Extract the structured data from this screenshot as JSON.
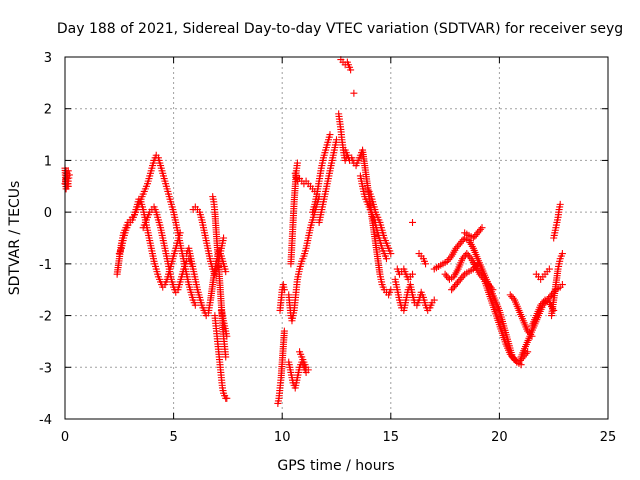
{
  "chart_data": {
    "type": "scatter",
    "title": "Day 188 of 2021, Sidereal Day-to-day VTEC variation (SDTVAR) for receiver seyg",
    "xlabel": "GPS time / hours",
    "ylabel": "SDTVAR / TECUs",
    "xlim": [
      0,
      25
    ],
    "ylim": [
      -4,
      3
    ],
    "xticks": [
      0,
      5,
      10,
      15,
      20,
      25
    ],
    "yticks": [
      -4,
      -3,
      -2,
      -1,
      0,
      1,
      2,
      3
    ],
    "xtick_labels": [
      "0",
      "5",
      "10",
      "15",
      "20",
      "25"
    ],
    "ytick_labels": [
      "-4",
      "-3",
      "-2",
      "-1",
      "0",
      "1",
      "2",
      "3"
    ],
    "grid": true,
    "legend": "none",
    "marker": "plus",
    "color": "#ff0000",
    "segments": [
      {
        "x": [
          0.0,
          0.05,
          0.1,
          0.15,
          0.2,
          0.15,
          0.1,
          0.05,
          0.0,
          0.05,
          0.1,
          0.15
        ],
        "y": [
          0.55,
          0.65,
          0.75,
          0.8,
          0.72,
          0.6,
          0.5,
          0.45,
          0.85,
          0.8,
          0.7,
          0.5
        ]
      },
      {
        "x": [
          2.4,
          2.5,
          2.6,
          2.7,
          2.8,
          2.9,
          3.0,
          3.1,
          3.2,
          3.3,
          3.4,
          3.5,
          3.6,
          3.7,
          3.8,
          3.9,
          4.0,
          4.1,
          4.2,
          4.3,
          4.4,
          4.5,
          4.6,
          4.7,
          4.8,
          4.9,
          5.0,
          5.1,
          5.2,
          5.3,
          5.4,
          5.5,
          5.6,
          5.7,
          5.8,
          5.9,
          6.0
        ],
        "y": [
          -1.2,
          -0.9,
          -0.6,
          -0.4,
          -0.3,
          -0.2,
          -0.15,
          -0.1,
          -0.05,
          0.05,
          0.15,
          0.25,
          0.35,
          0.45,
          0.55,
          0.7,
          0.85,
          1.0,
          1.1,
          1.05,
          0.9,
          0.75,
          0.6,
          0.45,
          0.3,
          0.15,
          0.0,
          -0.2,
          -0.4,
          -0.6,
          -0.8,
          -1.0,
          -1.2,
          -1.4,
          -1.55,
          -1.7,
          -1.8
        ]
      },
      {
        "x": [
          2.5,
          2.6,
          2.7,
          2.8,
          2.9,
          3.0,
          3.1,
          3.2,
          3.3,
          3.4,
          3.5,
          3.6,
          3.7,
          3.8,
          3.9,
          4.0,
          4.1,
          4.2,
          4.3,
          4.4,
          4.5,
          4.6,
          4.7,
          4.8,
          4.9,
          5.0,
          5.1,
          5.2,
          5.3
        ],
        "y": [
          -0.8,
          -0.7,
          -0.5,
          -0.35,
          -0.25,
          -0.2,
          -0.15,
          -0.05,
          0.1,
          0.25,
          0.2,
          0.05,
          -0.15,
          -0.35,
          -0.55,
          -0.75,
          -0.95,
          -1.1,
          -1.25,
          -1.35,
          -1.45,
          -1.4,
          -1.3,
          -1.15,
          -1.0,
          -0.85,
          -0.7,
          -0.55,
          -0.4
        ]
      },
      {
        "x": [
          3.6,
          3.7,
          3.8,
          3.9,
          4.0,
          4.1,
          4.2,
          4.3,
          4.4,
          4.5,
          4.6,
          4.7,
          4.8,
          4.9,
          5.0,
          5.1,
          5.2,
          5.3,
          5.4,
          5.5,
          5.6,
          5.7,
          5.8
        ],
        "y": [
          -0.3,
          -0.2,
          -0.1,
          0.0,
          0.05,
          0.1,
          0.0,
          -0.15,
          -0.3,
          -0.5,
          -0.7,
          -0.9,
          -1.1,
          -1.3,
          -1.45,
          -1.55,
          -1.5,
          -1.35,
          -1.2,
          -1.05,
          -0.95,
          -0.9,
          -1.0
        ]
      },
      {
        "x": [
          5.6,
          5.7,
          5.8,
          5.9,
          6.0,
          6.1,
          6.2,
          6.3,
          6.4,
          6.5,
          6.6,
          6.7,
          6.8,
          6.9,
          7.0,
          7.1,
          7.2,
          7.3,
          7.4
        ],
        "y": [
          -0.8,
          -0.7,
          -0.9,
          -1.1,
          -1.3,
          -1.5,
          -1.65,
          -1.8,
          -1.9,
          -2.0,
          -1.95,
          -1.7,
          -1.4,
          -1.1,
          -0.9,
          -0.75,
          -0.85,
          -1.0,
          -1.15
        ]
      },
      {
        "x": [
          5.9,
          6.0,
          6.1,
          6.2,
          6.3,
          6.4,
          6.5,
          6.6,
          6.7,
          6.8,
          6.9,
          7.0,
          7.1,
          7.2,
          7.3
        ],
        "y": [
          0.05,
          0.1,
          0.05,
          0.0,
          -0.15,
          -0.35,
          -0.55,
          -0.75,
          -0.95,
          -1.1,
          -1.2,
          -1.1,
          -0.9,
          -0.7,
          -0.5
        ]
      },
      {
        "x": [
          6.8,
          6.85,
          6.9,
          6.95,
          7.0,
          7.05,
          7.1,
          7.15,
          7.2,
          7.25,
          7.3,
          7.35,
          7.4
        ],
        "y": [
          0.3,
          0.2,
          0.0,
          -0.3,
          -0.6,
          -0.9,
          -1.2,
          -1.5,
          -1.8,
          -2.1,
          -2.4,
          -2.6,
          -2.8
        ]
      },
      {
        "x": [
          6.9,
          6.95,
          7.0,
          7.05,
          7.1,
          7.15,
          7.2,
          7.25,
          7.3,
          7.35,
          7.4,
          7.45
        ],
        "y": [
          -2.0,
          -2.2,
          -2.4,
          -2.6,
          -2.8,
          -3.0,
          -3.2,
          -3.4,
          -3.5,
          -3.55,
          -3.6,
          -3.6
        ]
      },
      {
        "x": [
          7.2,
          7.25,
          7.3,
          7.35,
          7.4,
          7.45
        ],
        "y": [
          -1.9,
          -2.0,
          -2.1,
          -2.2,
          -2.3,
          -2.4
        ]
      },
      {
        "x": [
          9.8,
          9.85,
          9.9,
          9.95,
          10.0,
          10.05,
          10.1
        ],
        "y": [
          -3.7,
          -3.6,
          -3.4,
          -3.2,
          -2.9,
          -2.6,
          -2.3
        ]
      },
      {
        "x": [
          9.9,
          9.95,
          10.0,
          10.05,
          10.1
        ],
        "y": [
          -1.9,
          -1.7,
          -1.5,
          -1.4,
          -1.5
        ]
      },
      {
        "x": [
          10.3,
          10.35,
          10.4,
          10.45,
          10.5,
          10.55,
          10.6,
          10.65,
          10.7,
          10.8,
          10.9,
          11.0,
          11.1,
          11.2,
          11.3,
          11.4,
          11.5,
          11.6,
          11.7
        ],
        "y": [
          -1.6,
          -1.8,
          -2.0,
          -2.1,
          -2.0,
          -1.9,
          -1.7,
          -1.5,
          -1.3,
          -1.1,
          -0.95,
          -0.85,
          -0.7,
          -0.5,
          -0.3,
          -0.15,
          0.0,
          0.15,
          0.3
        ]
      },
      {
        "x": [
          10.4,
          10.45,
          10.5,
          10.55,
          10.6,
          10.65,
          10.7
        ],
        "y": [
          -1.0,
          -0.6,
          -0.2,
          0.2,
          0.5,
          0.8,
          0.95
        ]
      },
      {
        "x": [
          10.6,
          10.7,
          10.8,
          10.9,
          11.0,
          11.1,
          11.2,
          11.3,
          11.4,
          11.5,
          11.6
        ],
        "y": [
          0.75,
          0.6,
          0.65,
          0.6,
          0.55,
          0.6,
          0.55,
          0.5,
          0.45,
          0.4,
          0.35
        ]
      },
      {
        "x": [
          10.3,
          10.4,
          10.5,
          10.6,
          10.7,
          10.8,
          10.9,
          11.0,
          11.1
        ],
        "y": [
          -2.9,
          -3.1,
          -3.3,
          -3.4,
          -3.2,
          -3.0,
          -2.9,
          -3.0,
          -3.1
        ]
      },
      {
        "x": [
          10.8,
          10.9,
          11.0,
          11.1,
          11.2
        ],
        "y": [
          -2.7,
          -2.8,
          -2.9,
          -3.0,
          -3.05
        ]
      },
      {
        "x": [
          11.4,
          11.5,
          11.6,
          11.7,
          11.8,
          11.9,
          12.0,
          12.1,
          12.2
        ],
        "y": [
          0.0,
          0.15,
          0.35,
          0.6,
          0.85,
          1.05,
          1.2,
          1.35,
          1.5
        ]
      },
      {
        "x": [
          11.7,
          11.8,
          11.9,
          12.0,
          12.1,
          12.2,
          12.3,
          12.4,
          12.5
        ],
        "y": [
          -0.2,
          0.0,
          0.2,
          0.4,
          0.6,
          0.8,
          1.0,
          1.2,
          1.4
        ]
      },
      {
        "x": [
          12.6,
          12.65,
          12.7,
          12.75,
          12.8,
          12.85,
          12.9,
          12.95,
          13.0
        ],
        "y": [
          1.9,
          1.75,
          1.6,
          1.4,
          1.25,
          1.1,
          1.0,
          1.05,
          1.1
        ]
      },
      {
        "x": [
          12.7,
          12.8,
          12.9,
          13.0,
          13.05,
          13.1,
          13.15
        ],
        "y": [
          2.95,
          2.9,
          2.85,
          2.9,
          2.85,
          2.8,
          2.75
        ]
      },
      {
        "x": [
          13.3
        ],
        "y": [
          2.3
        ]
      },
      {
        "x": [
          12.9,
          13.0,
          13.1,
          13.2,
          13.3,
          13.4,
          13.5,
          13.6,
          13.7,
          13.8,
          13.9,
          14.0,
          14.1,
          14.2,
          14.3,
          14.4,
          14.5,
          14.6,
          14.7,
          14.8,
          14.9,
          15.0
        ],
        "y": [
          1.2,
          1.1,
          1.0,
          1.05,
          0.95,
          0.9,
          1.0,
          1.1,
          1.2,
          0.9,
          0.6,
          0.3,
          0.0,
          -0.3,
          -0.6,
          -0.9,
          -1.2,
          -1.4,
          -1.5,
          -1.55,
          -1.6,
          -1.5
        ]
      },
      {
        "x": [
          13.6,
          13.7,
          13.8,
          13.9,
          14.0,
          14.1,
          14.2,
          14.3,
          14.4,
          14.5,
          14.6,
          14.7,
          14.8
        ],
        "y": [
          0.7,
          0.5,
          0.3,
          0.2,
          0.1,
          0.0,
          -0.1,
          -0.25,
          -0.4,
          -0.55,
          -0.7,
          -0.8,
          -0.9
        ]
      },
      {
        "x": [
          14.0,
          14.1,
          14.2,
          14.3,
          14.4,
          14.5,
          14.6,
          14.7,
          14.8,
          14.9,
          15.0
        ],
        "y": [
          0.4,
          0.3,
          0.15,
          0.0,
          -0.1,
          -0.2,
          -0.35,
          -0.5,
          -0.6,
          -0.7,
          -0.8
        ]
      },
      {
        "x": [
          15.2,
          15.3,
          15.4,
          15.5,
          15.6,
          15.7,
          15.8,
          15.9,
          16.0,
          16.1,
          16.2,
          16.3,
          16.4,
          16.5,
          16.6,
          16.7,
          16.8,
          16.9,
          17.0
        ],
        "y": [
          -1.3,
          -1.5,
          -1.7,
          -1.85,
          -1.9,
          -1.7,
          -1.5,
          -1.4,
          -1.6,
          -1.75,
          -1.8,
          -1.7,
          -1.55,
          -1.65,
          -1.8,
          -1.9,
          -1.85,
          -1.75,
          -1.7
        ]
      },
      {
        "x": [
          15.3,
          15.4,
          15.5,
          15.6,
          15.7,
          15.8,
          15.9,
          16.0
        ],
        "y": [
          -1.1,
          -1.2,
          -1.15,
          -1.1,
          -1.2,
          -1.3,
          -1.25,
          -1.2
        ]
      },
      {
        "x": [
          16.3,
          16.4,
          16.5,
          16.6
        ],
        "y": [
          -0.8,
          -0.85,
          -0.9,
          -1.0
        ]
      },
      {
        "x": [
          16.0
        ],
        "y": [
          -0.2
        ]
      },
      {
        "x": [
          17.0,
          17.2,
          17.4,
          17.6,
          17.8,
          18.0,
          18.2,
          18.4,
          18.6,
          18.8,
          19.0,
          19.2,
          19.4,
          19.6,
          19.8,
          20.0,
          20.2,
          20.4,
          20.6,
          20.8,
          21.0
        ],
        "y": [
          -1.1,
          -1.05,
          -1.0,
          -0.95,
          -0.85,
          -0.7,
          -0.6,
          -0.5,
          -0.55,
          -0.7,
          -0.9,
          -1.1,
          -1.3,
          -1.5,
          -1.7,
          -1.9,
          -2.2,
          -2.5,
          -2.8,
          -2.9,
          -2.95
        ]
      },
      {
        "x": [
          17.5,
          17.7,
          17.9,
          18.1,
          18.3,
          18.5,
          18.7,
          18.9,
          19.1,
          19.3,
          19.5,
          19.7
        ],
        "y": [
          -1.2,
          -1.3,
          -1.25,
          -1.1,
          -0.9,
          -0.8,
          -0.9,
          -1.05,
          -1.2,
          -1.3,
          -1.4,
          -1.5
        ]
      },
      {
        "x": [
          17.8,
          18.0,
          18.2,
          18.4,
          18.6,
          18.8,
          19.0
        ],
        "y": [
          -1.5,
          -1.4,
          -1.3,
          -1.2,
          -1.15,
          -1.1,
          -1.0
        ]
      },
      {
        "x": [
          18.4,
          18.6,
          18.8,
          19.0,
          19.2
        ],
        "y": [
          -0.4,
          -0.45,
          -0.5,
          -0.4,
          -0.3
        ]
      },
      {
        "x": [
          19.3,
          19.5,
          19.7,
          19.9,
          20.1,
          20.3,
          20.5,
          20.7,
          20.9,
          21.1,
          21.3
        ],
        "y": [
          -1.3,
          -1.55,
          -1.8,
          -2.05,
          -2.3,
          -2.55,
          -2.75,
          -2.85,
          -2.9,
          -2.8,
          -2.7
        ]
      },
      {
        "x": [
          20.5,
          20.7,
          20.9,
          21.1,
          21.3,
          21.5
        ],
        "y": [
          -1.6,
          -1.7,
          -1.9,
          -2.1,
          -2.3,
          -2.4
        ]
      },
      {
        "x": [
          21.0,
          21.2,
          21.4,
          21.6,
          21.8,
          22.0,
          22.2,
          22.4,
          22.6,
          22.8,
          22.9
        ],
        "y": [
          -2.8,
          -2.6,
          -2.4,
          -2.2,
          -2.0,
          -1.8,
          -1.7,
          -1.6,
          -1.5,
          -1.45,
          -1.4
        ]
      },
      {
        "x": [
          21.5,
          21.7,
          21.9,
          22.1,
          22.3,
          22.5
        ],
        "y": [
          -2.2,
          -2.0,
          -1.8,
          -1.7,
          -1.75,
          -1.9
        ]
      },
      {
        "x": [
          21.7,
          21.8,
          21.9,
          22.0,
          22.1,
          22.2,
          22.3
        ],
        "y": [
          -1.2,
          -1.25,
          -1.3,
          -1.25,
          -1.2,
          -1.15,
          -1.1
        ]
      },
      {
        "x": [
          22.4,
          22.5,
          22.6,
          22.7,
          22.8,
          22.9
        ],
        "y": [
          -2.0,
          -1.7,
          -1.4,
          -1.1,
          -0.9,
          -0.8
        ]
      },
      {
        "x": [
          22.5,
          22.6,
          22.7,
          22.75,
          22.8
        ],
        "y": [
          -0.5,
          -0.3,
          -0.1,
          0.05,
          0.15
        ]
      }
    ]
  }
}
